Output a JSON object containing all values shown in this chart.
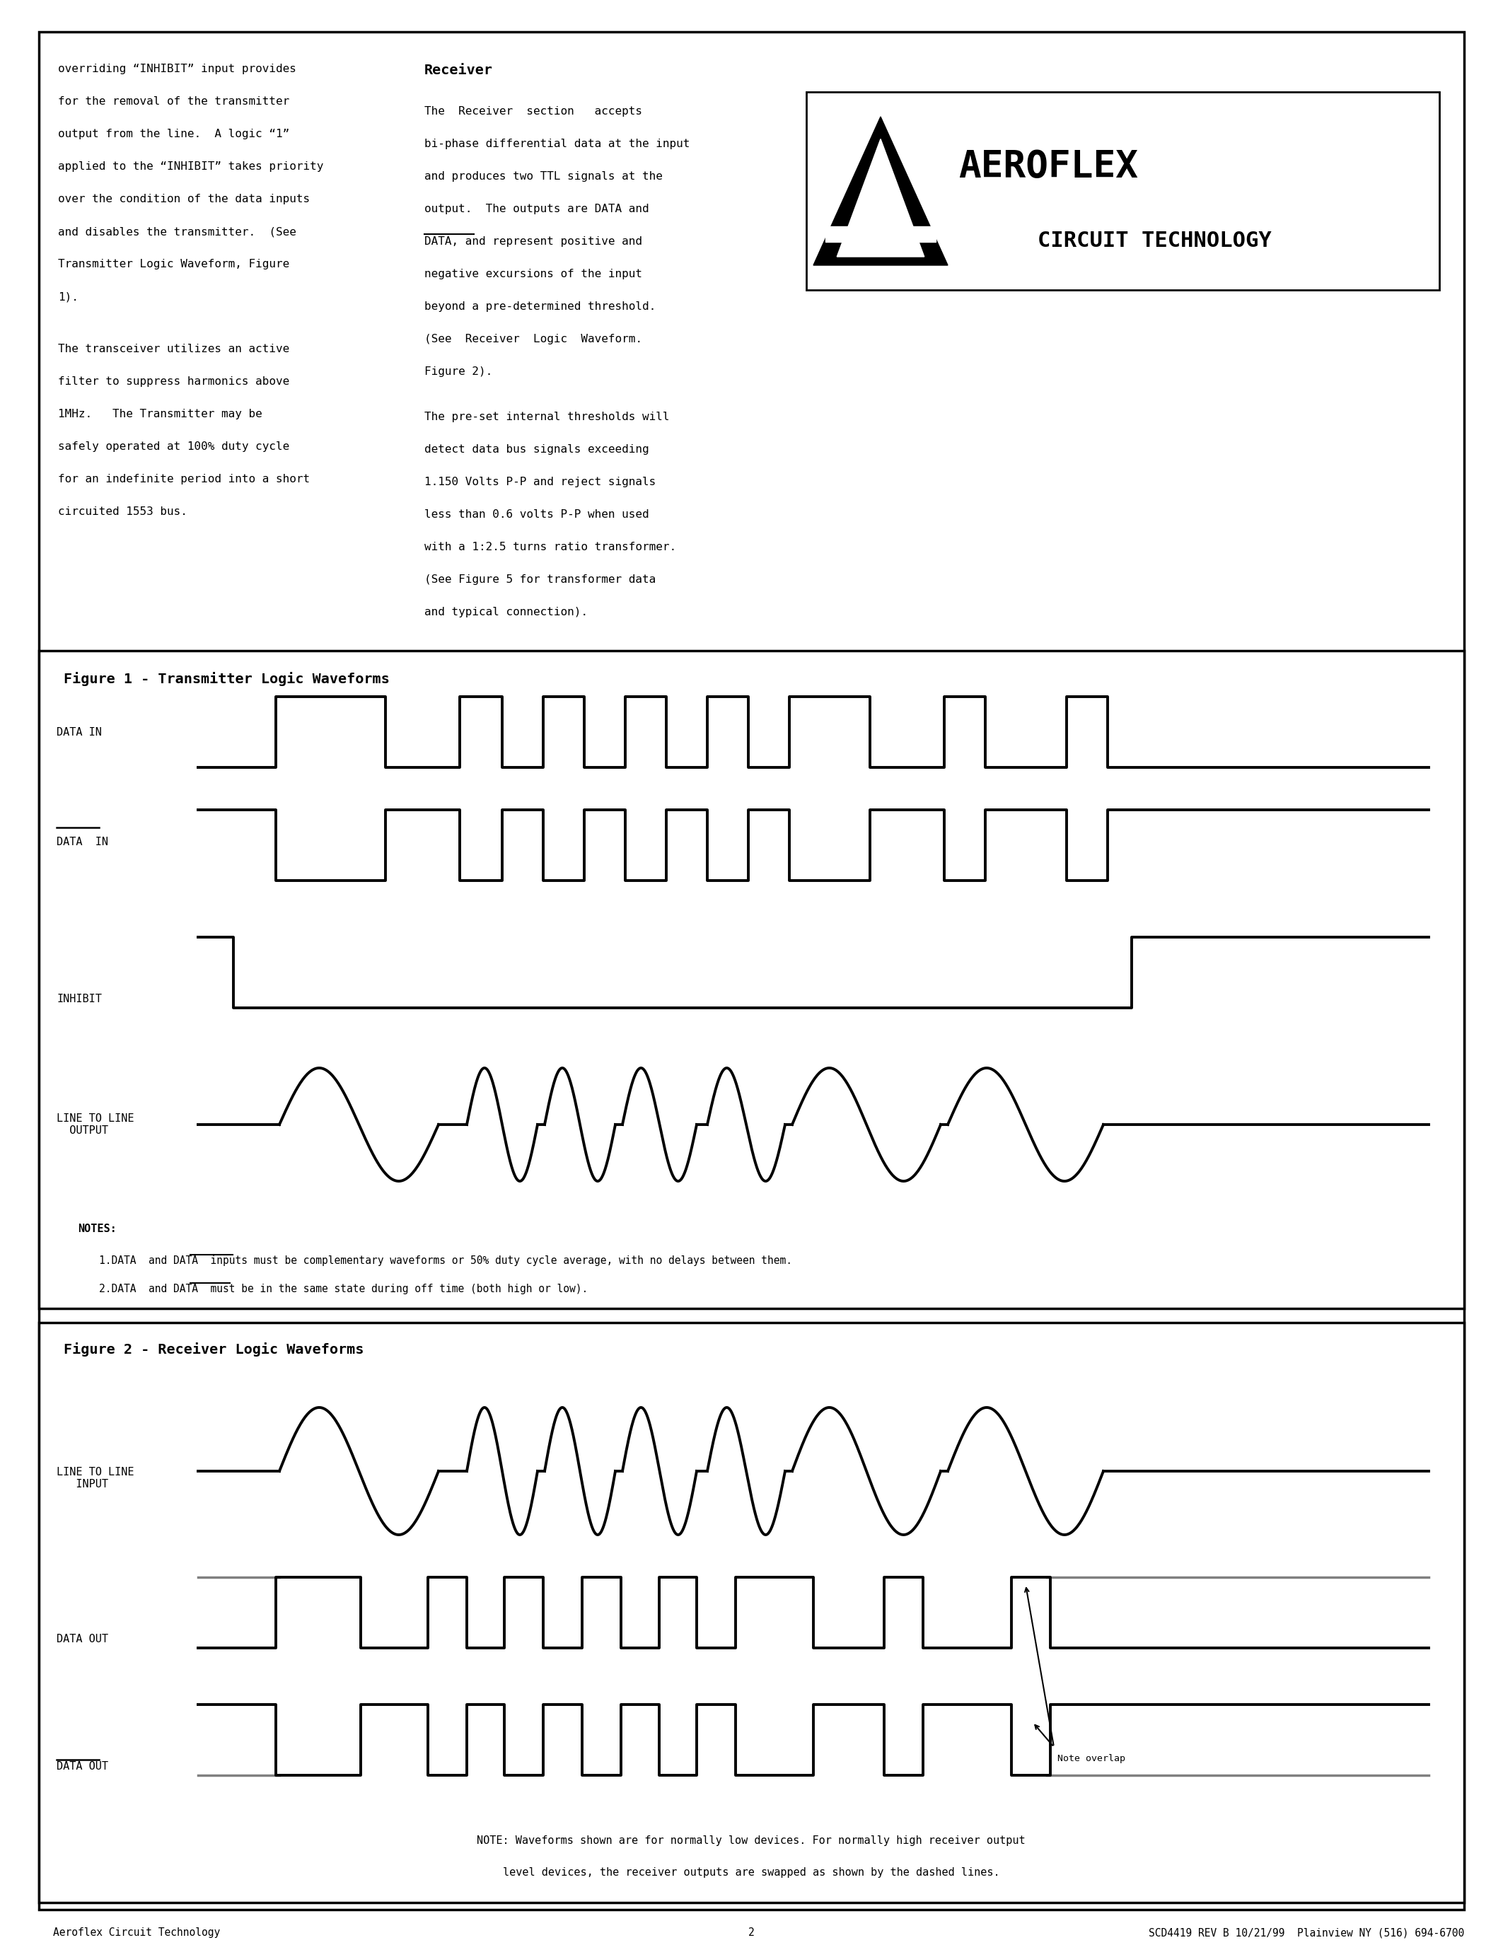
{
  "page_bg": "#ffffff",
  "left_col_text": [
    "overriding “INHIBIT” input provides",
    "for the removal of the transmitter",
    "output from the line.  A logic “1”",
    "applied to the “INHIBIT” takes priority",
    "over the condition of the data inputs",
    "and disables the transmitter.  (See",
    "Transmitter Logic Waveform, Figure",
    "1).",
    "",
    "The transceiver utilizes an active",
    "filter to suppress harmonics above",
    "1MHz.   The Transmitter may be",
    "safely operated at 100% duty cycle",
    "for an indefinite period into a short",
    "circuited 1553 bus."
  ],
  "mid_col_text_para1": [
    "The  Receiver  section   accepts",
    "bi-phase differential data at the input",
    "and produces two TTL signals at the",
    "output.  The outputs are DATA and",
    "DATA, and represent positive and",
    "negative excursions of the input",
    "beyond a pre-determined threshold.",
    "(See  Receiver  Logic  Waveform.",
    "Figure 2)."
  ],
  "mid_col_text_para2": [
    "The pre-set internal thresholds will",
    "detect data bus signals exceeding",
    "1.150 Volts P-P and reject signals",
    "less than 0.6 volts P-P when used",
    "with a 1:2.5 turns ratio transformer.",
    "(See Figure 5 for transformer data",
    "and typical connection)."
  ],
  "receiver_heading": "Receiver",
  "fig1_title": "Figure 1 - Transmitter Logic Waveforms",
  "fig2_title": "Figure 2 - Receiver Logic Waveforms",
  "notes_line1": "1.DATA  and DATA  inputs must be complementary waveforms or 50% duty cycle average, with no delays between them.",
  "notes_line2": "2.DATA  and DATA  must be in the same state during off time (both high or low).",
  "note_fig2_1": "NOTE: Waveforms shown are for normally low devices. For normally high receiver output",
  "note_fig2_2": "level devices, the receiver outputs are swapped as shown by the dashed lines.",
  "footer_left": "Aeroflex Circuit Technology",
  "footer_center": "2",
  "footer_right": "SCD4419 REV B 10/21/99  Plainview NY (516) 694-6700"
}
